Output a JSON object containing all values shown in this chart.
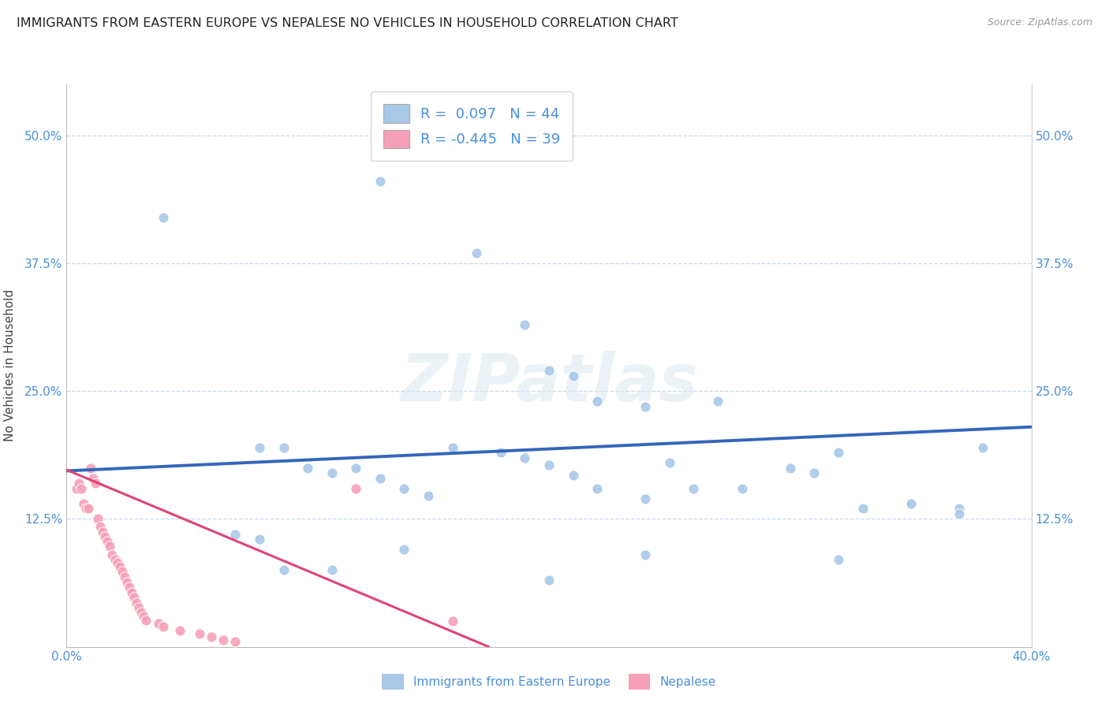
{
  "title": "IMMIGRANTS FROM EASTERN EUROPE VS NEPALESE NO VEHICLES IN HOUSEHOLD CORRELATION CHART",
  "source": "Source: ZipAtlas.com",
  "ylabel": "No Vehicles in Household",
  "xlim": [
    0.0,
    0.4
  ],
  "ylim": [
    0.0,
    0.55
  ],
  "yticks": [
    0.0,
    0.125,
    0.25,
    0.375,
    0.5
  ],
  "ytick_labels_left": [
    "",
    "12.5%",
    "25.0%",
    "37.5%",
    "50.0%"
  ],
  "ytick_labels_right": [
    "",
    "12.5%",
    "25.0%",
    "37.5%",
    "50.0%"
  ],
  "xticks": [
    0.0,
    0.1,
    0.2,
    0.3,
    0.4
  ],
  "xtick_labels": [
    "0.0%",
    "",
    "",
    "",
    "40.0%"
  ],
  "r_blue": 0.097,
  "n_blue": 44,
  "r_pink": -0.445,
  "n_pink": 39,
  "blue_color": "#a8c8e8",
  "pink_color": "#f5a0b8",
  "blue_line_color": "#3366bb",
  "pink_line_color": "#dd4477",
  "watermark": "ZIPatlas",
  "blue_scatter_x": [
    0.04,
    0.13,
    0.17,
    0.19,
    0.2,
    0.21,
    0.22,
    0.24,
    0.08,
    0.09,
    0.1,
    0.11,
    0.12,
    0.13,
    0.14,
    0.15,
    0.16,
    0.18,
    0.19,
    0.2,
    0.21,
    0.22,
    0.24,
    0.25,
    0.26,
    0.27,
    0.28,
    0.3,
    0.31,
    0.32,
    0.33,
    0.35,
    0.37,
    0.38,
    0.07,
    0.08,
    0.14,
    0.24,
    0.37,
    0.32,
    0.09,
    0.11,
    0.2,
    0.16
  ],
  "blue_scatter_y": [
    0.42,
    0.455,
    0.385,
    0.315,
    0.27,
    0.265,
    0.24,
    0.235,
    0.195,
    0.195,
    0.175,
    0.17,
    0.175,
    0.165,
    0.155,
    0.148,
    0.195,
    0.19,
    0.185,
    0.178,
    0.168,
    0.155,
    0.145,
    0.18,
    0.155,
    0.24,
    0.155,
    0.175,
    0.17,
    0.19,
    0.135,
    0.14,
    0.135,
    0.195,
    0.11,
    0.105,
    0.095,
    0.09,
    0.13,
    0.085,
    0.075,
    0.075,
    0.065,
    0.495
  ],
  "pink_scatter_x": [
    0.004,
    0.005,
    0.006,
    0.007,
    0.008,
    0.009,
    0.01,
    0.011,
    0.012,
    0.013,
    0.014,
    0.015,
    0.016,
    0.017,
    0.018,
    0.019,
    0.02,
    0.021,
    0.022,
    0.023,
    0.024,
    0.025,
    0.026,
    0.027,
    0.028,
    0.029,
    0.03,
    0.031,
    0.032,
    0.033,
    0.038,
    0.04,
    0.047,
    0.055,
    0.06,
    0.065,
    0.07,
    0.12,
    0.16
  ],
  "pink_scatter_y": [
    0.155,
    0.16,
    0.155,
    0.14,
    0.135,
    0.135,
    0.175,
    0.165,
    0.16,
    0.125,
    0.118,
    0.112,
    0.108,
    0.103,
    0.098,
    0.09,
    0.085,
    0.082,
    0.078,
    0.074,
    0.068,
    0.063,
    0.058,
    0.053,
    0.048,
    0.043,
    0.038,
    0.034,
    0.03,
    0.026,
    0.023,
    0.02,
    0.016,
    0.013,
    0.01,
    0.007,
    0.005,
    0.155,
    0.025
  ],
  "blue_line_x": [
    0.0,
    0.4
  ],
  "blue_line_y": [
    0.172,
    0.215
  ],
  "pink_line_x": [
    0.0,
    0.175
  ],
  "pink_line_y": [
    0.173,
    0.0
  ]
}
